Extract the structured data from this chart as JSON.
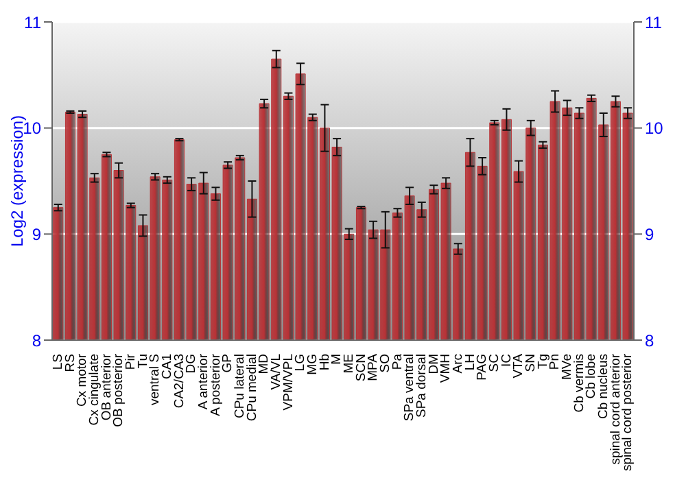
{
  "chart_data": {
    "type": "bar",
    "ylabel": "Log2 (expression)",
    "categories": [
      "LS",
      "RS",
      "Cx motor",
      "Cx cingulate",
      "OB anterior",
      "OB posterior",
      "Pir",
      "Tu",
      "ventral S",
      "CA1",
      "CA2/CA3",
      "DG",
      "A anterior",
      "A posterior",
      "GP",
      "CPu lateral",
      "CPu medial",
      "MD",
      "VA/VL",
      "VPM/VPL",
      "LG",
      "MG",
      "Hb",
      "M",
      "ME",
      "SCN",
      "MPA",
      "SO",
      "Pa",
      "SPa ventral",
      "SPa dorsal",
      "DM",
      "VMH",
      "Arc",
      "LH",
      "PAG",
      "SC",
      "IC",
      "VTA",
      "SN",
      "Tg",
      "Pn",
      "MVe",
      "Cb vermis",
      "Cb lobe",
      "Cb nucleus",
      "spinal cord anterior",
      "spinal cord posterior"
    ],
    "values": [
      9.25,
      10.15,
      10.13,
      9.53,
      9.75,
      9.6,
      9.27,
      9.08,
      9.54,
      9.51,
      9.89,
      9.47,
      9.48,
      9.38,
      9.65,
      9.72,
      9.33,
      10.23,
      10.65,
      10.3,
      10.51,
      10.1,
      10.0,
      9.82,
      9.0,
      9.25,
      9.04,
      9.04,
      9.2,
      9.36,
      9.23,
      9.42,
      9.48,
      8.86,
      9.77,
      9.64,
      10.05,
      10.08,
      9.59,
      10.0,
      9.84,
      10.25,
      10.19,
      10.14,
      10.28,
      10.03,
      10.25,
      10.14
    ],
    "errors": [
      0.03,
      0.01,
      0.03,
      0.04,
      0.02,
      0.07,
      0.02,
      0.1,
      0.03,
      0.03,
      0.01,
      0.06,
      0.1,
      0.06,
      0.03,
      0.02,
      0.17,
      0.04,
      0.08,
      0.03,
      0.1,
      0.03,
      0.22,
      0.08,
      0.05,
      0.01,
      0.08,
      0.17,
      0.04,
      0.08,
      0.07,
      0.04,
      0.05,
      0.05,
      0.13,
      0.08,
      0.02,
      0.1,
      0.1,
      0.07,
      0.03,
      0.1,
      0.07,
      0.05,
      0.03,
      0.11,
      0.05,
      0.05
    ],
    "color": "#b83236",
    "ylim": [
      8,
      11
    ],
    "yticks": [
      8,
      9,
      10,
      11
    ],
    "y2lim": [
      8,
      11
    ],
    "y2ticks": [
      8,
      9,
      10,
      11
    ],
    "grid": "y"
  }
}
